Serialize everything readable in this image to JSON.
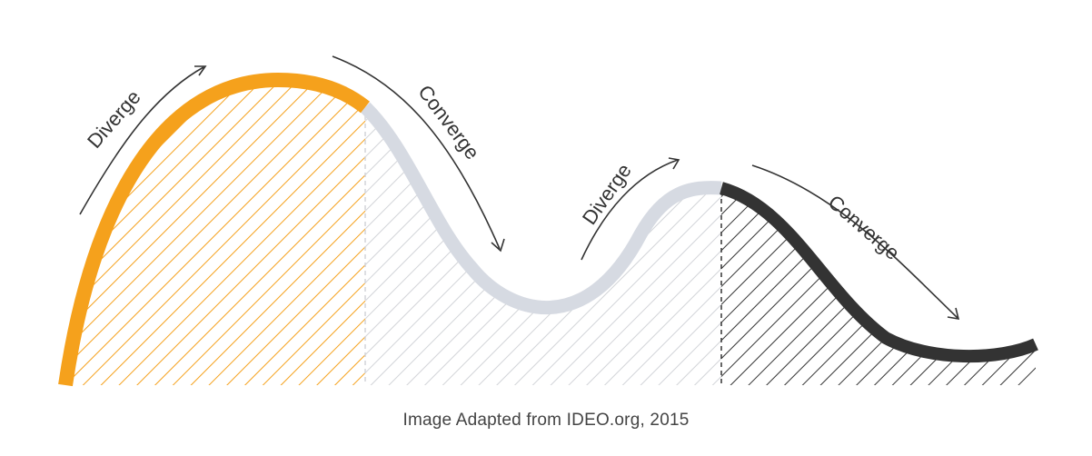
{
  "labels": {
    "phase1": "Diverge",
    "phase2": "Converge",
    "phase3": "Diverge",
    "phase4": "Converge"
  },
  "caption": "Image Adapted from IDEO.org, 2015",
  "colors": {
    "orange": "#F5A11C",
    "gray": "#D6DAE2",
    "dark": "#333333",
    "hatch_orange": "#F5A11C",
    "hatch_gray": "#D2D4D8",
    "hatch_dark": "#333333",
    "arrow": "#333333"
  }
}
